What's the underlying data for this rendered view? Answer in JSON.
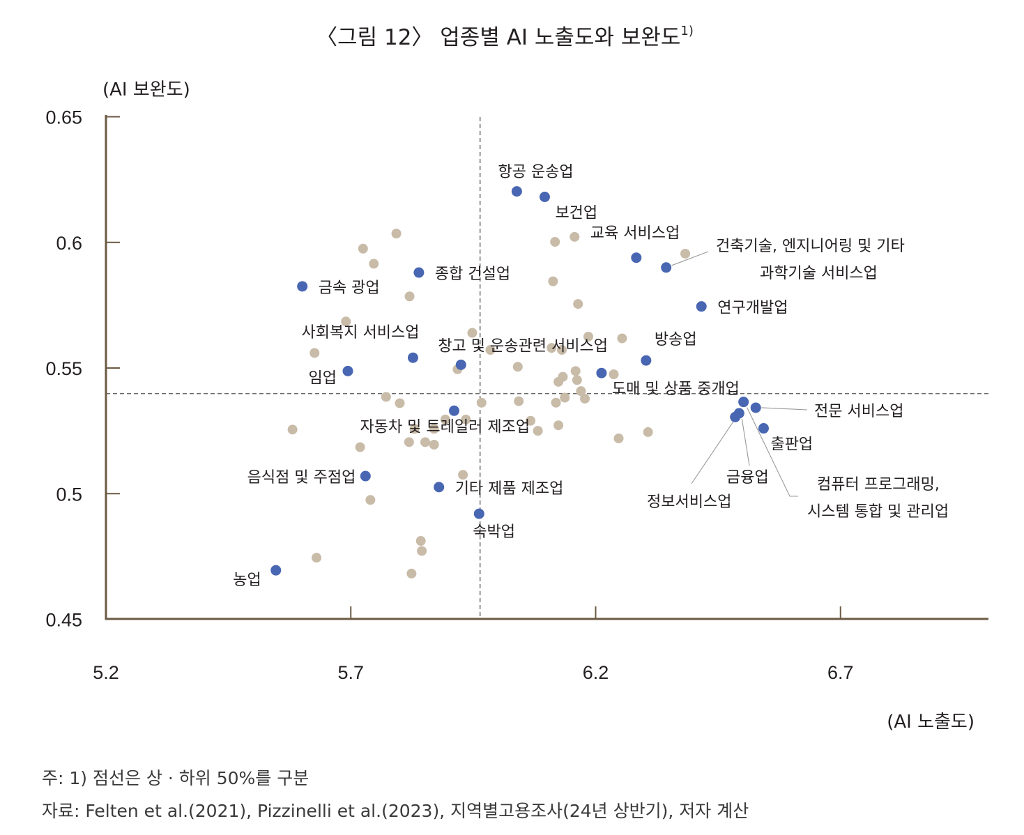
{
  "colors": {
    "axis": "#6b5a45",
    "highlight": "#4866b2",
    "other": "#c8bba8",
    "dash": "#555555",
    "leader": "#999999"
  },
  "chart_data": {
    "type": "scatter",
    "title": "〈그림 12〉 업종별 AI 노출도와 보완도",
    "title_sup": "1)",
    "xlabel": "(AI 노출도)",
    "ylabel": "(AI 보완도)",
    "xlim": [
      5.2,
      7.0
    ],
    "ylim": [
      0.45,
      0.65
    ],
    "xticks": [
      5.2,
      5.7,
      6.2,
      6.7
    ],
    "xtick_labels": [
      "5.2",
      "5.7",
      "6.2",
      "6.7"
    ],
    "yticks": [
      0.45,
      0.5,
      0.55,
      0.6,
      0.65
    ],
    "ytick_labels": [
      "0.45",
      "0.5",
      "0.55",
      "0.6",
      "0.65"
    ],
    "grid": false,
    "median_lines": {
      "x": 5.964,
      "y": 0.5398
    },
    "highlighted": [
      {
        "x": 6.039,
        "y": 0.6203,
        "label": "항공 운송업",
        "label_pos": "above-right"
      },
      {
        "x": 6.096,
        "y": 0.6181,
        "label": "보건업",
        "label_pos": "below-right"
      },
      {
        "x": 6.283,
        "y": 0.5939,
        "label": "교육 서비스업",
        "label_pos": "above"
      },
      {
        "x": 6.344,
        "y": 0.59,
        "label": "건축기술, 엔지니어링 및 기타",
        "label2": "과학기술 서비스업",
        "label_pos": "leader-right"
      },
      {
        "x": 6.416,
        "y": 0.5745,
        "label": "연구개발업",
        "label_pos": "right"
      },
      {
        "x": 5.601,
        "y": 0.5825,
        "label": "금속 광업",
        "label_pos": "right"
      },
      {
        "x": 5.839,
        "y": 0.588,
        "label": "종합 건설업",
        "label_pos": "right"
      },
      {
        "x": 5.827,
        "y": 0.5541,
        "label": "사회복지 서비스업",
        "label_pos": "above-left"
      },
      {
        "x": 5.694,
        "y": 0.5488,
        "label": "임업",
        "label_pos": "left"
      },
      {
        "x": 5.925,
        "y": 0.5513,
        "label": "창고 및 운송관련 서비스업",
        "label_pos": "above-right"
      },
      {
        "x": 6.212,
        "y": 0.548,
        "label": "도매 및 상품 중개업",
        "label_pos": "below-right"
      },
      {
        "x": 6.303,
        "y": 0.553,
        "label": "방송업",
        "label_pos": "above-right"
      },
      {
        "x": 5.911,
        "y": 0.533,
        "label": "자동차 및 트레일러 제조업",
        "label_pos": "below"
      },
      {
        "x": 5.73,
        "y": 0.507,
        "label": "음식점 및 주점업",
        "label_pos": "left"
      },
      {
        "x": 5.88,
        "y": 0.5026,
        "label": "기타 제품 제조업",
        "label_pos": "right"
      },
      {
        "x": 5.962,
        "y": 0.492,
        "label": "숙박업",
        "label_pos": "below"
      },
      {
        "x": 5.547,
        "y": 0.4695,
        "label": "농업",
        "label_pos": "below-left"
      },
      {
        "x": 6.502,
        "y": 0.5365,
        "label": "",
        "label_pos": "none"
      },
      {
        "x": 6.527,
        "y": 0.5342,
        "label": "전문 서비스업",
        "label_pos": "leader-right"
      },
      {
        "x": 6.543,
        "y": 0.526,
        "label": "출판업",
        "label_pos": "below-right"
      },
      {
        "x": 6.485,
        "y": 0.5305,
        "label": "정보서비스업",
        "label_pos": "leader-below-left"
      },
      {
        "x": 6.493,
        "y": 0.532,
        "label": "금융업",
        "label_pos": "leader-below"
      },
      {
        "x": 6.502,
        "y": 0.5365,
        "label": "컴퓨터 프로그래밍,",
        "label2": "시스템 통합 및 관리업",
        "label_pos": "leader-below-right"
      }
    ],
    "others": [
      [
        5.581,
        0.5255
      ],
      [
        5.626,
        0.556
      ],
      [
        5.69,
        0.5685
      ],
      [
        5.725,
        0.5975
      ],
      [
        5.747,
        0.5915
      ],
      [
        5.793,
        0.6035
      ],
      [
        5.82,
        0.5785
      ],
      [
        5.719,
        0.5185
      ],
      [
        5.74,
        0.4975
      ],
      [
        5.772,
        0.5385
      ],
      [
        5.8,
        0.536
      ],
      [
        5.819,
        0.5205
      ],
      [
        5.83,
        0.5258
      ],
      [
        5.852,
        0.5205
      ],
      [
        5.87,
        0.5195
      ],
      [
        5.87,
        0.5258
      ],
      [
        5.893,
        0.5295
      ],
      [
        5.918,
        0.5495
      ],
      [
        5.929,
        0.5075
      ],
      [
        5.935,
        0.5295
      ],
      [
        5.948,
        0.564
      ],
      [
        5.967,
        0.5362
      ],
      [
        5.985,
        0.5572
      ],
      [
        6.041,
        0.5505
      ],
      [
        6.043,
        0.5368
      ],
      [
        6.067,
        0.529
      ],
      [
        6.082,
        0.525
      ],
      [
        6.11,
        0.558
      ],
      [
        6.113,
        0.5845
      ],
      [
        6.117,
        0.6002
      ],
      [
        6.119,
        0.5362
      ],
      [
        6.124,
        0.5445
      ],
      [
        6.124,
        0.5272
      ],
      [
        6.131,
        0.5572
      ],
      [
        6.133,
        0.5465
      ],
      [
        6.137,
        0.5382
      ],
      [
        6.157,
        0.6022
      ],
      [
        6.159,
        0.5488
      ],
      [
        6.162,
        0.5452
      ],
      [
        6.164,
        0.5755
      ],
      [
        6.17,
        0.5408
      ],
      [
        6.178,
        0.5378
      ],
      [
        6.185,
        0.5625
      ],
      [
        6.237,
        0.5475
      ],
      [
        6.247,
        0.522
      ],
      [
        6.254,
        0.5618
      ],
      [
        6.307,
        0.5245
      ],
      [
        6.383,
        0.5955
      ],
      [
        5.63,
        0.4745
      ],
      [
        5.843,
        0.4812
      ],
      [
        5.845,
        0.4772
      ],
      [
        5.824,
        0.4682
      ]
    ]
  },
  "notes": {
    "note1": "주: 1) 점선은 상 · 하위 50%를 구분",
    "source": "자료: Felten et al.(2021), Pizzinelli et al.(2023), 지역별고용조사(24년 상반기), 저자 계산"
  }
}
